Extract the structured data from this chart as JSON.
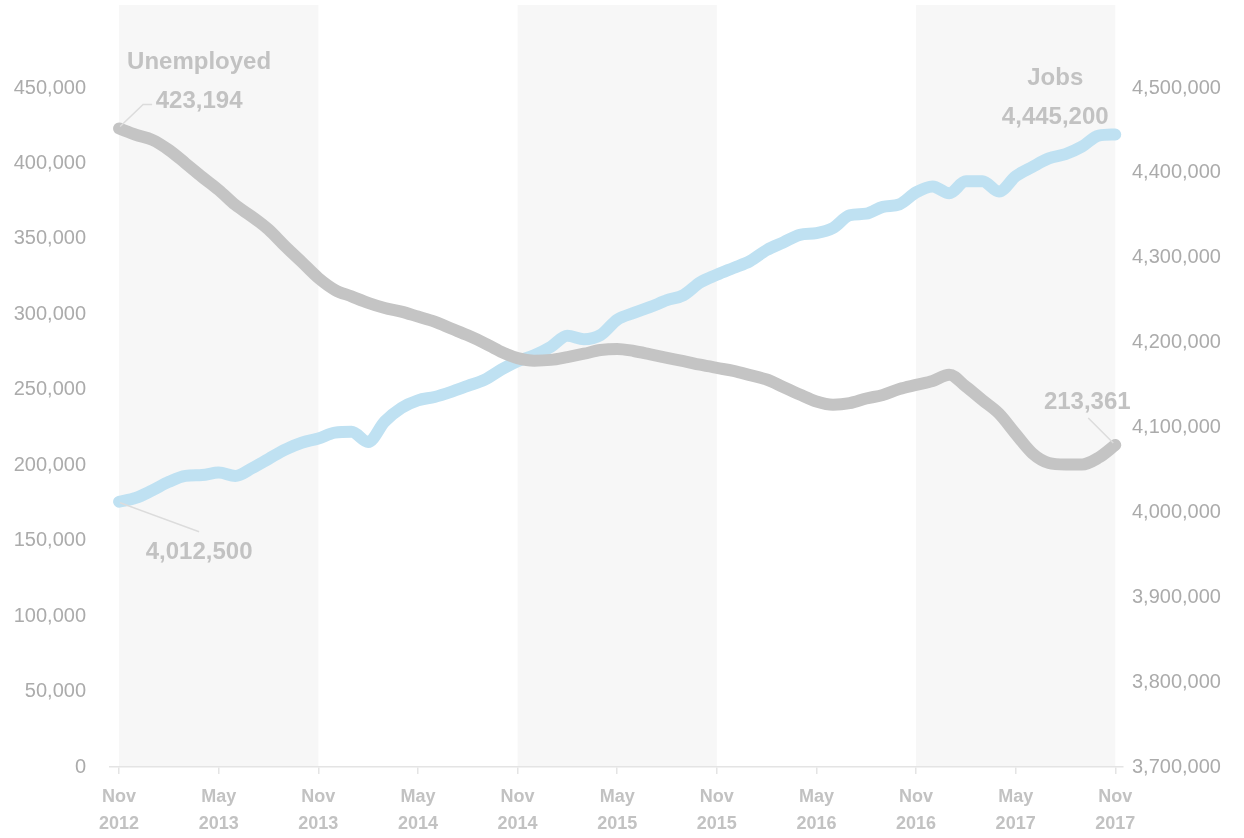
{
  "chart_data": {
    "type": "line",
    "x": [
      "2012-11",
      "2012-12",
      "2013-01",
      "2013-02",
      "2013-03",
      "2013-04",
      "2013-05",
      "2013-06",
      "2013-07",
      "2013-08",
      "2013-09",
      "2013-10",
      "2013-11",
      "2013-12",
      "2014-01",
      "2014-02",
      "2014-03",
      "2014-04",
      "2014-05",
      "2014-06",
      "2014-07",
      "2014-08",
      "2014-09",
      "2014-10",
      "2014-11",
      "2014-12",
      "2015-01",
      "2015-02",
      "2015-03",
      "2015-04",
      "2015-05",
      "2015-06",
      "2015-07",
      "2015-08",
      "2015-09",
      "2015-10",
      "2015-11",
      "2015-12",
      "2016-01",
      "2016-02",
      "2016-03",
      "2016-04",
      "2016-05",
      "2016-06",
      "2016-07",
      "2016-08",
      "2016-09",
      "2016-10",
      "2016-11",
      "2016-12",
      "2017-01",
      "2017-02",
      "2017-03",
      "2017-04",
      "2017-05",
      "2017-06",
      "2017-07",
      "2017-08",
      "2017-09",
      "2017-10",
      "2017-11"
    ],
    "xlim": [
      "2012-10-15",
      "2017-11-15"
    ],
    "xticks": [
      {
        "value": "2012-11",
        "label": "Nov 2012"
      },
      {
        "value": "2013-05",
        "label": "May 2013"
      },
      {
        "value": "2013-11",
        "label": "Nov 2013"
      },
      {
        "value": "2014-05",
        "label": "May 2014"
      },
      {
        "value": "2014-11",
        "label": "Nov 2014"
      },
      {
        "value": "2015-05",
        "label": "May 2015"
      },
      {
        "value": "2015-11",
        "label": "Nov 2015"
      },
      {
        "value": "2016-05",
        "label": "May 2016"
      },
      {
        "value": "2016-11",
        "label": "Nov 2016"
      },
      {
        "value": "2017-05",
        "label": "May 2017"
      },
      {
        "value": "2017-11",
        "label": "Nov 2017"
      }
    ],
    "ylim": [
      0,
      450000
    ],
    "yticks": [
      {
        "value": 0,
        "label": "0"
      },
      {
        "value": 50000,
        "label": "50,000"
      },
      {
        "value": 100000,
        "label": "100,000"
      },
      {
        "value": 150000,
        "label": "150,000"
      },
      {
        "value": 200000,
        "label": "200,000"
      },
      {
        "value": 250000,
        "label": "250,000"
      },
      {
        "value": 300000,
        "label": "300,000"
      },
      {
        "value": 350000,
        "label": "350,000"
      },
      {
        "value": 400000,
        "label": "400,000"
      },
      {
        "value": 450000,
        "label": "450,000"
      }
    ],
    "y2lim": [
      3700000,
      4500000
    ],
    "y2ticks": [
      {
        "value": 3700000,
        "label": "3,700,000"
      },
      {
        "value": 3800000,
        "label": "3,800,000"
      },
      {
        "value": 3900000,
        "label": "3,900,000"
      },
      {
        "value": 4000000,
        "label": "4,000,000"
      },
      {
        "value": 4100000,
        "label": "4,100,000"
      },
      {
        "value": 4200000,
        "label": "4,200,000"
      },
      {
        "value": 4300000,
        "label": "4,300,000"
      },
      {
        "value": 4400000,
        "label": "4,400,000"
      },
      {
        "value": 4500000,
        "label": "4,500,000"
      }
    ],
    "series": [
      {
        "name": "Unemployed",
        "color": "#c4c4c4",
        "values": [
          423194,
          419000,
          415600,
          408900,
          400100,
          391000,
          382400,
          372500,
          364800,
          356200,
          345100,
          334700,
          324100,
          316200,
          311900,
          307600,
          304200,
          301800,
          298500,
          295200,
          290600,
          286100,
          281000,
          275200,
          271000,
          269300,
          269800,
          271700,
          273900,
          276400,
          277100,
          275700,
          273500,
          271200,
          269000,
          266600,
          264500,
          262500,
          259700,
          256800,
          251900,
          246900,
          242300,
          240100,
          241100,
          244200,
          246600,
          250500,
          253200,
          255800,
          260000,
          252100,
          243100,
          234200,
          220800,
          208000,
          201500,
          200500,
          200500,
          205000,
          213361
        ],
        "value_labels": [
          "423,194",
          null,
          null,
          null,
          null,
          null,
          null,
          null,
          null,
          null,
          null,
          null,
          null,
          null,
          null,
          null,
          null,
          null,
          null,
          null,
          null,
          null,
          null,
          null,
          null,
          null,
          null,
          null,
          null,
          null,
          null,
          null,
          null,
          null,
          null,
          null,
          null,
          null,
          null,
          null,
          null,
          null,
          null,
          null,
          null,
          null,
          null,
          null,
          null,
          null,
          null,
          null,
          null,
          null,
          null,
          null,
          null,
          null,
          null,
          null,
          "213,361"
        ]
      },
      {
        "name": "Jobs",
        "color": "#bfe1f2",
        "axis": "y2",
        "values": [
          4012500,
          4017000,
          4026000,
          4036000,
          4043000,
          4044000,
          4047000,
          4043000,
          4052000,
          4063000,
          4074000,
          4082000,
          4087000,
          4094000,
          4095000,
          4083000,
          4107000,
          4123000,
          4132000,
          4136000,
          4142000,
          4149000,
          4156000,
          4168000,
          4178000,
          4185000,
          4195000,
          4208000,
          4204000,
          4209000,
          4227000,
          4235000,
          4242000,
          4250000,
          4256000,
          4271000,
          4280000,
          4288000,
          4296000,
          4309000,
          4318000,
          4327000,
          4329000,
          4335000,
          4350000,
          4352000,
          4360000,
          4363000,
          4377000,
          4384000,
          4376000,
          4390000,
          4390000,
          4378000,
          4396000,
          4407000,
          4417000,
          4422000,
          4431000,
          4444000,
          4445200
        ],
        "value_labels": [
          "4,012,500",
          null,
          null,
          null,
          null,
          null,
          null,
          null,
          null,
          null,
          null,
          null,
          null,
          null,
          null,
          null,
          null,
          null,
          null,
          null,
          null,
          null,
          null,
          null,
          null,
          null,
          null,
          null,
          null,
          null,
          null,
          null,
          null,
          null,
          null,
          null,
          null,
          null,
          null,
          null,
          null,
          null,
          null,
          null,
          null,
          null,
          null,
          null,
          null,
          null,
          null,
          null,
          null,
          null,
          null,
          null,
          null,
          null,
          null,
          null,
          "4,445,200"
        ]
      }
    ],
    "bands": [
      {
        "axis": "x",
        "from": "2012-11",
        "to": "2013-11",
        "color": "#f7f7f7"
      },
      {
        "axis": "x",
        "from": "2014-11",
        "to": "2015-11",
        "color": "#f7f7f7"
      },
      {
        "axis": "x",
        "from": "2016-11",
        "to": "2017-11",
        "color": "#f7f7f7"
      }
    ],
    "grid": false,
    "legend": false,
    "marker": "none",
    "line_style": "solid"
  }
}
